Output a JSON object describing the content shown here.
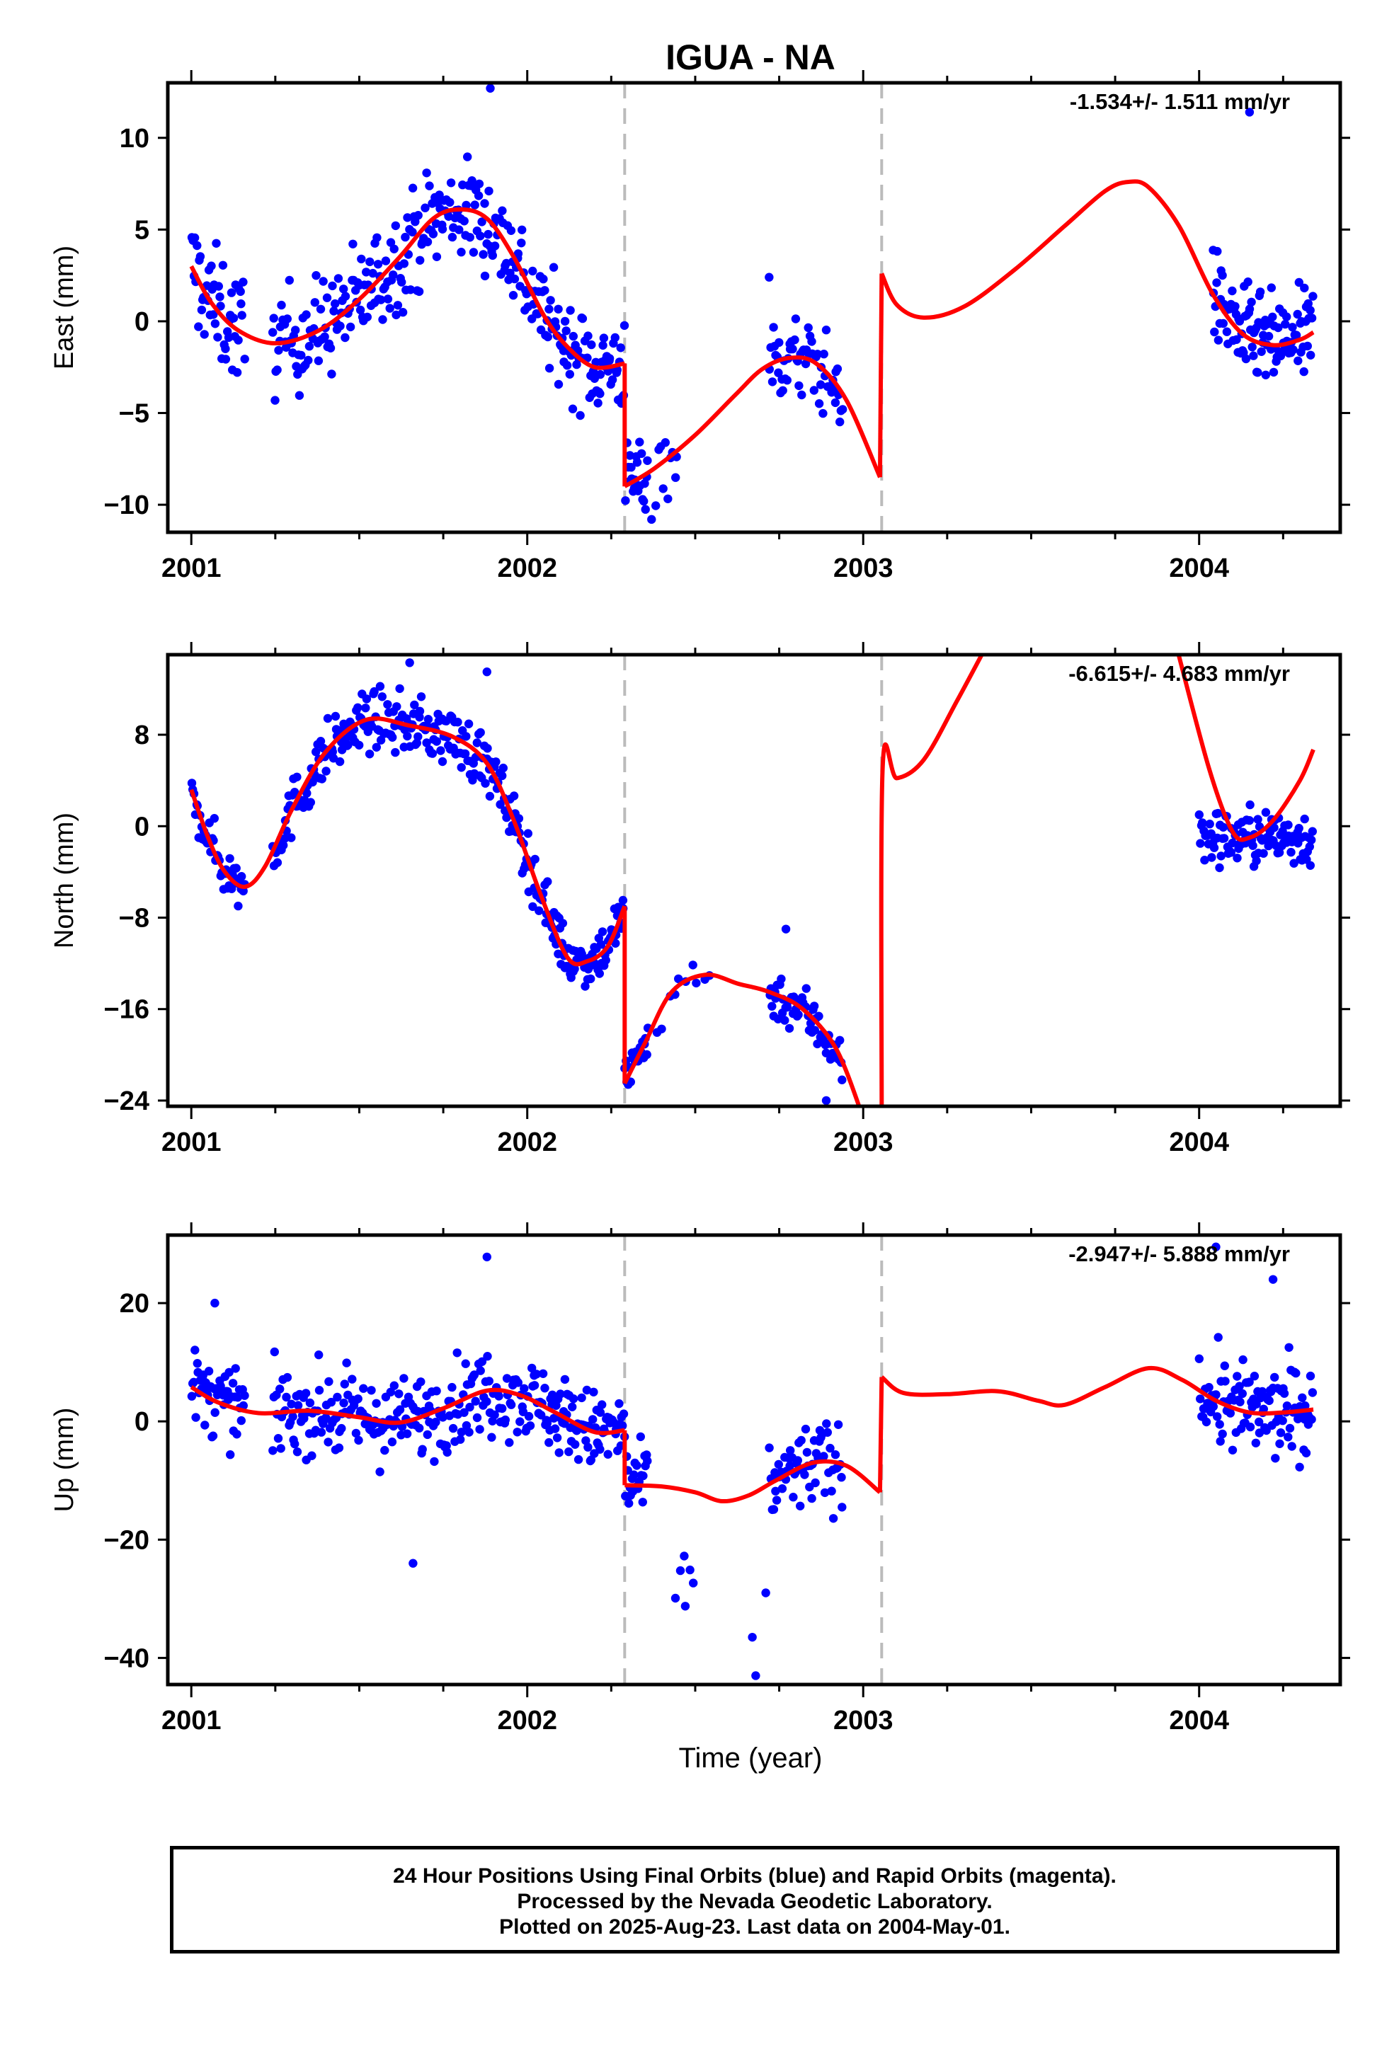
{
  "title": "IGUA - NA",
  "xlabel": "Time (year)",
  "footer": {
    "line1": "24 Hour Positions Using Final Orbits (blue) and Rapid Orbits (magenta).",
    "line2": "Processed by the Nevada Geodetic Laboratory.",
    "line3": "Plotted on 2025-Aug-23. Last data on 2004-May-01."
  },
  "colors": {
    "data": "#0000ff",
    "model": "#ff0000",
    "breaks": "#bbbbbb",
    "frame": "#000000"
  },
  "chart_data": [
    {
      "type": "scatter",
      "ylabel": "East (mm)",
      "rate_text": "-1.534+/- 1.511 mm/yr",
      "xlim": [
        2000.93,
        2004.42
      ],
      "ylim": [
        -11.5,
        13
      ],
      "x_ticks": [
        2001,
        2002,
        2003,
        2004
      ],
      "y_ticks": [
        10,
        5,
        0,
        -5,
        -10
      ],
      "equipment_breaks": [
        2002.29,
        2003.055
      ],
      "model_knots": [
        [
          2001.0,
          3.0
        ],
        [
          2001.06,
          1.0
        ],
        [
          2001.14,
          -0.5
        ],
        [
          2001.25,
          -1.2
        ],
        [
          2001.38,
          -0.5
        ],
        [
          2001.5,
          1.2
        ],
        [
          2001.62,
          3.5
        ],
        [
          2001.72,
          5.6
        ],
        [
          2001.8,
          6.1
        ],
        [
          2001.88,
          5.6
        ],
        [
          2001.96,
          3.5
        ],
        [
          2002.05,
          0.3
        ],
        [
          2002.12,
          -1.4
        ],
        [
          2002.2,
          -2.5
        ],
        [
          2002.29,
          -2.3
        ],
        null,
        [
          2002.29,
          -9.0
        ],
        [
          2002.38,
          -8.0
        ],
        [
          2002.5,
          -6.2
        ],
        [
          2002.62,
          -4.0
        ],
        [
          2002.7,
          -2.6
        ],
        [
          2002.78,
          -2.0
        ],
        [
          2002.86,
          -2.3
        ],
        [
          2002.95,
          -4.3
        ],
        [
          2003.05,
          -8.5
        ],
        null,
        [
          2003.055,
          2.6
        ],
        [
          2003.1,
          0.9
        ],
        [
          2003.18,
          0.2
        ],
        [
          2003.3,
          0.8
        ],
        [
          2003.45,
          2.8
        ],
        [
          2003.6,
          5.2
        ],
        [
          2003.72,
          7.1
        ],
        [
          2003.79,
          7.6
        ],
        [
          2003.85,
          7.3
        ],
        [
          2003.94,
          5.2
        ],
        [
          2004.04,
          1.5
        ],
        [
          2004.13,
          -0.7
        ],
        [
          2004.22,
          -1.3
        ],
        [
          2004.3,
          -1.0
        ],
        [
          2004.34,
          -0.6
        ]
      ],
      "observation_segments": [
        {
          "x_range": [
            2001.0,
            2001.16
          ],
          "trend": "model",
          "spread": 2.2,
          "count": 50
        },
        {
          "x_range": [
            2001.24,
            2002.05
          ],
          "trend": "model",
          "spread": 2.0,
          "count": 230
        },
        {
          "x_range": [
            2002.05,
            2002.36
          ],
          "trend": "model",
          "spread": 1.8,
          "count": 100
        },
        {
          "x_range": [
            2002.38,
            2002.45
          ],
          "trend": "model",
          "spread": 1.5,
          "count": 10
        },
        {
          "x_range": [
            2002.72,
            2002.94
          ],
          "trend": "model",
          "spread": 1.6,
          "count": 60
        },
        {
          "x_range": [
            2004.04,
            2004.34
          ],
          "trend": "model",
          "spread": 1.8,
          "count": 110
        }
      ],
      "highlighted_points": [
        [
          2001.89,
          12.7
        ],
        [
          2004.15,
          11.4
        ],
        [
          2002.37,
          -10.8
        ],
        [
          2002.72,
          2.4
        ]
      ]
    },
    {
      "type": "scatter",
      "ylabel": "North (mm)",
      "rate_text": "-6.615+/- 4.683 mm/yr",
      "xlim": [
        2000.93,
        2004.42
      ],
      "ylim": [
        -24.5,
        15
      ],
      "x_ticks": [
        2001,
        2002,
        2003,
        2004
      ],
      "y_ticks": [
        8,
        0,
        -8,
        -16,
        -24
      ],
      "equipment_breaks": [
        2002.29,
        2003.055
      ],
      "model_knots": [
        [
          2001.0,
          3.2
        ],
        [
          2001.05,
          -1.0
        ],
        [
          2001.1,
          -4.0
        ],
        [
          2001.16,
          -5.3
        ],
        [
          2001.22,
          -3.5
        ],
        [
          2001.3,
          1.5
        ],
        [
          2001.4,
          6.5
        ],
        [
          2001.52,
          9.3
        ],
        [
          2001.65,
          8.8
        ],
        [
          2001.78,
          7.8
        ],
        [
          2001.88,
          5.5
        ],
        [
          2001.96,
          0.5
        ],
        [
          2002.04,
          -6.0
        ],
        [
          2002.12,
          -11.5
        ],
        [
          2002.18,
          -11.8
        ],
        [
          2002.24,
          -10.5
        ],
        [
          2002.29,
          -7.0
        ],
        null,
        [
          2002.29,
          -22.5
        ],
        [
          2002.35,
          -19.0
        ],
        [
          2002.43,
          -14.5
        ],
        [
          2002.53,
          -13.0
        ],
        [
          2002.63,
          -13.8
        ],
        [
          2002.72,
          -14.5
        ],
        [
          2002.82,
          -16.0
        ],
        [
          2002.92,
          -19.5
        ],
        [
          2003.0,
          -25.5
        ],
        null,
        [
          2003.055,
          -25.5
        ],
        [
          2003.058,
          5.2
        ],
        [
          2003.1,
          4.2
        ],
        [
          2003.18,
          5.8
        ],
        [
          2003.28,
          11.0
        ],
        [
          2003.38,
          16.5
        ],
        null,
        [
          2003.93,
          16.0
        ],
        [
          2004.03,
          5.0
        ],
        [
          2004.1,
          -0.5
        ],
        [
          2004.15,
          -1.0
        ],
        [
          2004.22,
          0.5
        ],
        [
          2004.3,
          4.0
        ],
        [
          2004.34,
          6.7
        ]
      ],
      "observation_segments": [
        {
          "x_range": [
            2001.0,
            2001.16
          ],
          "trend": "model",
          "spread": 1.6,
          "count": 45
        },
        {
          "x_range": [
            2001.24,
            2002.05
          ],
          "trend": "model",
          "spread": 1.8,
          "count": 230
        },
        {
          "x_range": [
            2002.05,
            2002.36
          ],
          "trend": "model",
          "spread": 1.6,
          "count": 100
        },
        {
          "x_range": [
            2002.38,
            2002.55
          ],
          "trend": "model",
          "spread": 1.4,
          "count": 10
        },
        {
          "x_range": [
            2002.72,
            2002.94
          ],
          "trend": "model",
          "spread": 1.6,
          "count": 60
        },
        {
          "x_range": [
            2004.0,
            2004.34
          ],
          "trend": -1.0,
          "spread": 1.8,
          "count": 110
        }
      ],
      "highlighted_points": [
        [
          2001.88,
          13.5
        ],
        [
          2002.77,
          -9.0
        ],
        [
          2002.89,
          -24.0
        ],
        [
          2001.65,
          14.3
        ]
      ]
    },
    {
      "type": "scatter",
      "ylabel": "Up (mm)",
      "rate_text": "-2.947+/- 5.888 mm/yr",
      "xlim": [
        2000.93,
        2004.42
      ],
      "ylim": [
        -44.5,
        31.5
      ],
      "x_ticks": [
        2001,
        2002,
        2003,
        2004
      ],
      "y_ticks": [
        20,
        0,
        -20,
        -40
      ],
      "equipment_breaks": [
        2002.29,
        2003.055
      ],
      "model_knots": [
        [
          2001.0,
          5.8
        ],
        [
          2001.08,
          3.2
        ],
        [
          2001.2,
          1.4
        ],
        [
          2001.35,
          1.8
        ],
        [
          2001.5,
          0.7
        ],
        [
          2001.62,
          -0.2
        ],
        [
          2001.75,
          2.2
        ],
        [
          2001.88,
          5.2
        ],
        [
          2001.98,
          4.4
        ],
        [
          2002.08,
          1.6
        ],
        [
          2002.2,
          -1.8
        ],
        [
          2002.29,
          -1.5
        ],
        null,
        [
          2002.29,
          -10.8
        ],
        [
          2002.4,
          -11.0
        ],
        [
          2002.5,
          -12.0
        ],
        [
          2002.58,
          -13.5
        ],
        [
          2002.66,
          -12.5
        ],
        [
          2002.74,
          -10.0
        ],
        [
          2002.85,
          -7.0
        ],
        [
          2002.95,
          -7.5
        ],
        [
          2003.05,
          -12.0
        ],
        null,
        [
          2003.055,
          7.5
        ],
        [
          2003.12,
          4.8
        ],
        [
          2003.25,
          4.6
        ],
        [
          2003.4,
          5.1
        ],
        [
          2003.52,
          3.5
        ],
        [
          2003.6,
          2.8
        ],
        [
          2003.72,
          5.8
        ],
        [
          2003.85,
          9.0
        ],
        [
          2003.95,
          7.0
        ],
        [
          2004.05,
          3.5
        ],
        [
          2004.15,
          1.5
        ],
        [
          2004.25,
          1.5
        ],
        [
          2004.34,
          2.0
        ]
      ],
      "observation_segments": [
        {
          "x_range": [
            2001.0,
            2001.16
          ],
          "trend": "model",
          "spread": 4.5,
          "count": 50
        },
        {
          "x_range": [
            2001.24,
            2002.05
          ],
          "trend": "model",
          "spread": 5.0,
          "count": 230
        },
        {
          "x_range": [
            2002.05,
            2002.36
          ],
          "trend": "model",
          "spread": 4.8,
          "count": 100
        },
        {
          "x_range": [
            2002.44,
            2002.5
          ],
          "trend": -27.0,
          "spread": 4.0,
          "count": 6
        },
        {
          "x_range": [
            2002.72,
            2002.94
          ],
          "trend": "model",
          "spread": 5.0,
          "count": 60
        },
        {
          "x_range": [
            2004.0,
            2004.34
          ],
          "trend": "model",
          "spread": 5.5,
          "count": 110
        }
      ],
      "highlighted_points": [
        [
          2001.88,
          27.8
        ],
        [
          2001.07,
          20.0
        ],
        [
          2001.66,
          -24.0
        ],
        [
          2004.05,
          29.5
        ],
        [
          2004.22,
          24.0
        ],
        [
          2002.68,
          -43.0
        ],
        [
          2002.67,
          -36.5
        ],
        [
          2002.71,
          -29.0
        ]
      ]
    }
  ]
}
